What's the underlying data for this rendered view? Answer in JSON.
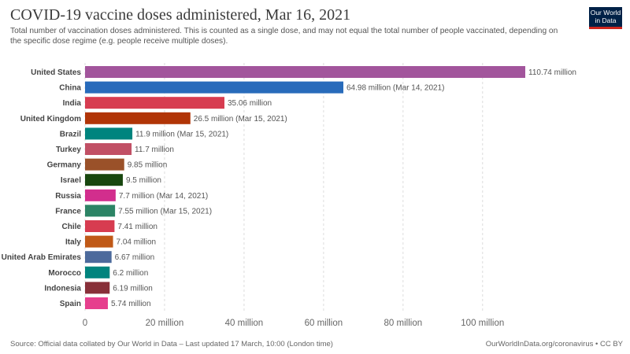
{
  "header": {
    "title": "COVID-19 vaccine doses administered, Mar 16, 2021",
    "subtitle": "Total number of vaccination doses administered. This is counted as a single dose, and may not equal the total number of people vaccinated, depending on the specific dose regime (e.g. people receive multiple doses).",
    "logo_line1": "Our World",
    "logo_line2": "in Data"
  },
  "footer": {
    "source": "Source: Official data collated by Our World in Data – Last updated 17 March, 10:00 (London time)",
    "license": "OurWorldInData.org/coronavirus • CC BY"
  },
  "chart_data": {
    "type": "bar",
    "orientation": "horizontal",
    "title": "COVID-19 vaccine doses administered, Mar 16, 2021",
    "unit": "million",
    "xlim": [
      0,
      110.74
    ],
    "xticks": [
      0,
      20,
      40,
      60,
      80,
      100
    ],
    "xtick_labels": [
      "0",
      "20 million",
      "40 million",
      "60 million",
      "80 million",
      "100 million"
    ],
    "grid": "vertical dashed",
    "categories": [
      "United States",
      "China",
      "India",
      "United Kingdom",
      "Brazil",
      "Turkey",
      "Germany",
      "Israel",
      "Russia",
      "France",
      "Chile",
      "Italy",
      "United Arab Emirates",
      "Morocco",
      "Indonesia",
      "Spain"
    ],
    "values": [
      110.74,
      64.98,
      35.06,
      26.5,
      11.9,
      11.7,
      9.85,
      9.5,
      7.7,
      7.55,
      7.41,
      7.04,
      6.67,
      6.2,
      6.19,
      5.74
    ],
    "value_labels": [
      "110.74 million",
      "64.98 million (Mar 14, 2021)",
      "35.06 million",
      "26.5 million (Mar 15, 2021)",
      "11.9 million (Mar 15, 2021)",
      "11.7 million",
      "9.85 million",
      "9.5 million",
      "7.7 million (Mar 14, 2021)",
      "7.55 million (Mar 15, 2021)",
      "7.41 million",
      "7.04 million",
      "6.67 million",
      "6.2 million",
      "6.19 million",
      "5.74 million"
    ],
    "colors": [
      "#a2559c",
      "#286bbb",
      "#d73c50",
      "#b13507",
      "#00847e",
      "#c15065",
      "#9a5129",
      "#18470f",
      "#d22e8d",
      "#2c8465",
      "#d73c50",
      "#c05917",
      "#4c6a9c",
      "#00847e",
      "#883039",
      "#e63f8d"
    ]
  }
}
